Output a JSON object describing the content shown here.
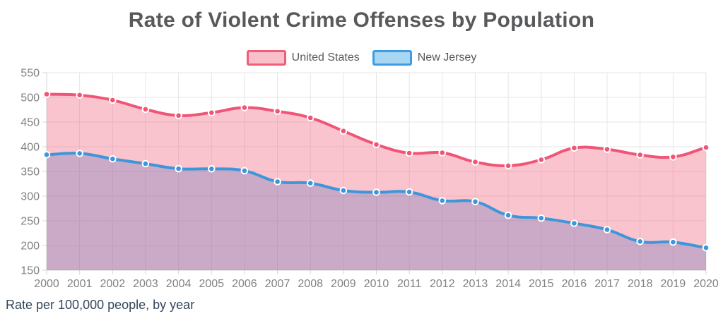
{
  "page": {
    "title": "Rate of Violent Crime Offenses by Population",
    "caption": "Rate per 100,000 people, by year"
  },
  "legend": {
    "position": "top",
    "items": [
      {
        "label": "United States",
        "swatch_fill": "#f9c0cc",
        "swatch_border": "#f25d78"
      },
      {
        "label": "New Jersey",
        "swatch_fill": "#a8d7f3",
        "swatch_border": "#3f9ce0"
      }
    ]
  },
  "chart_data": {
    "type": "area",
    "title": "Rate of Violent Crime Offenses by Population",
    "xlabel": "",
    "ylabel": "",
    "caption": "Rate per 100,000 people, by year",
    "x": [
      2000,
      2001,
      2002,
      2003,
      2004,
      2005,
      2006,
      2007,
      2008,
      2009,
      2010,
      2011,
      2012,
      2013,
      2014,
      2015,
      2016,
      2017,
      2018,
      2019,
      2020
    ],
    "series": [
      {
        "name": "United States",
        "line_color": "#f05576",
        "fill_color": "rgba(240,85,118,0.35)",
        "values": [
          506.5,
          504.5,
          494.4,
          475.8,
          463.2,
          469.0,
          479.3,
          471.8,
          458.6,
          431.9,
          404.5,
          387.1,
          387.8,
          369.1,
          361.6,
          373.7,
          397.5,
          394.9,
          383.4,
          379.4,
          398.5
        ]
      },
      {
        "name": "New Jersey",
        "line_color": "#3d96da",
        "fill_color": "rgba(61,150,218,0.38)",
        "values": [
          383.8,
          386.6,
          375.5,
          365.7,
          355.5,
          355.3,
          351.6,
          329.3,
          326.3,
          311.4,
          307.7,
          308.4,
          290.8,
          288.8,
          261.1,
          255.4,
          245.0,
          232.1,
          208.1,
          206.9,
          195.4
        ]
      }
    ],
    "ylim": [
      150,
      550
    ],
    "ytick_step": 50,
    "grid": true,
    "legend_position": "top",
    "grid_color": "#e6e6e6",
    "axis_border_color": "#d6d6d6",
    "tick_label_color": "#828282",
    "line_tension": 0.4
  }
}
